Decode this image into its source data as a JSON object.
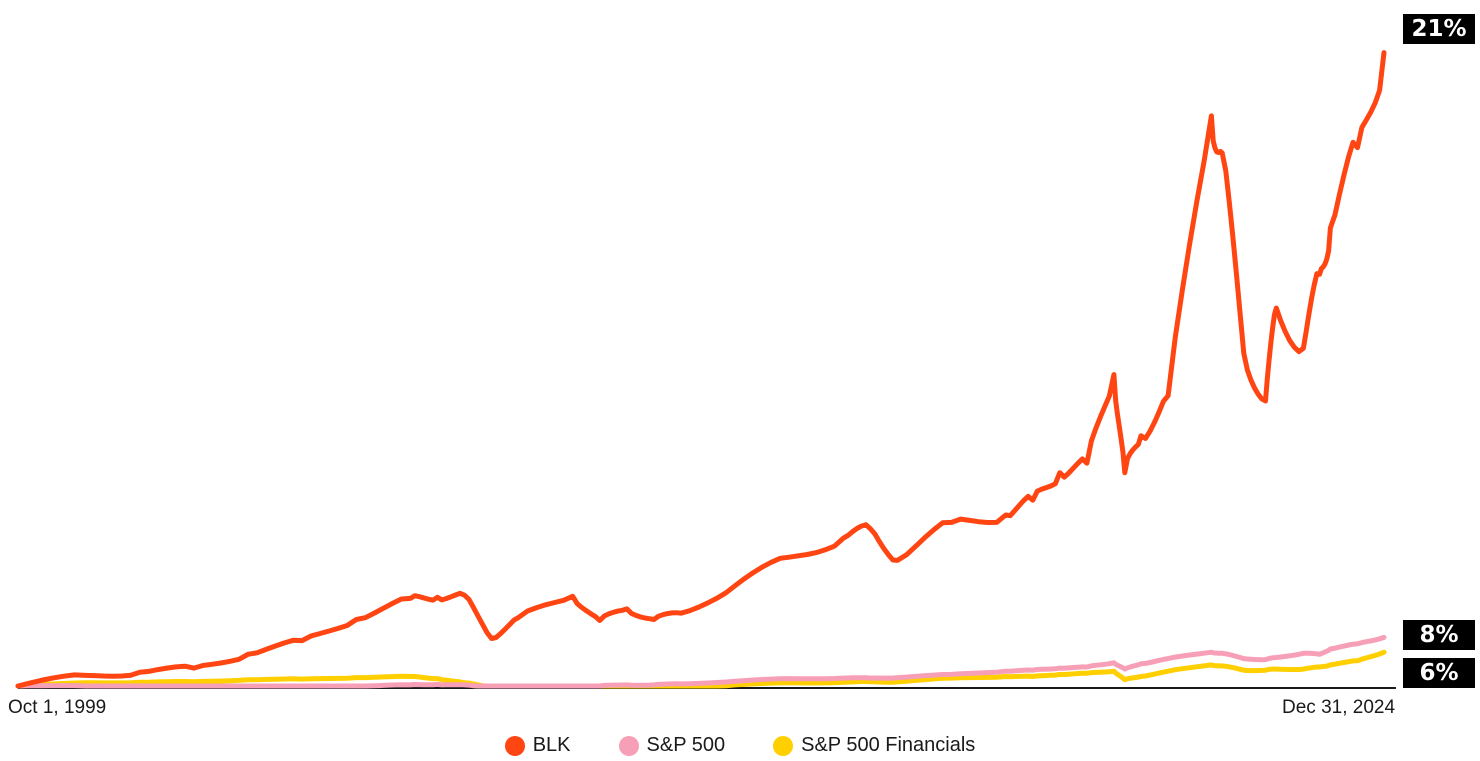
{
  "chart_data": {
    "type": "line",
    "title": "",
    "xlabel": "",
    "ylabel": "",
    "x_range": [
      "Oct 1, 1999",
      "Dec 31, 2024"
    ],
    "x_tick_labels": [
      "Oct 1, 1999",
      "Dec 31, 2024"
    ],
    "grid": false,
    "legend_position": "bottom-center",
    "note": "Cumulative total return lines indexed to start; end labels show annualized returns. Values are approximate relative growth multiples (start = 1).",
    "x": [
      1999.75,
      2001,
      2002,
      2003,
      2004,
      2005,
      2006,
      2007,
      2007.5,
      2008,
      2008.5,
      2009,
      2010,
      2010.5,
      2011,
      2011.5,
      2012,
      2013,
      2014,
      2015,
      2015.5,
      2016,
      2017,
      2018,
      2018.5,
      2019,
      2019.5,
      2020,
      2020.2,
      2020.5,
      2021,
      2021.8,
      2022,
      2022.4,
      2022.8,
      2023,
      2023.5,
      2023.8,
      2024,
      2024.5,
      2024.99
    ],
    "series": [
      {
        "name": "BLK",
        "color": "#FF4512",
        "end_label": "21%",
        "values": [
          1,
          2,
          2.3,
          2.7,
          4,
          5.3,
          7.3,
          9.3,
          9.4,
          9.6,
          5.5,
          7.5,
          9.5,
          7.2,
          8.3,
          7.3,
          7.9,
          10.5,
          13.2,
          15,
          15.9,
          12.9,
          16.5,
          17.2,
          18.6,
          21.2,
          22.1,
          30.5,
          21.2,
          24.7,
          28.5,
          55,
          51.5,
          32.5,
          28,
          36.8,
          33,
          40,
          44.4,
          52,
          61
        ]
      },
      {
        "name": "S&P 500",
        "color": "#F79FB6",
        "end_label": "8%",
        "values": [
          1,
          1,
          0.85,
          0.7,
          0.85,
          0.9,
          1,
          1.1,
          1.15,
          1.1,
          0.8,
          0.75,
          0.95,
          1,
          1.1,
          1.1,
          1.2,
          1.45,
          1.7,
          1.75,
          1.75,
          1.8,
          2.1,
          2.4,
          2.5,
          2.7,
          2.8,
          3.2,
          2.6,
          3.1,
          3.6,
          4.2,
          4.1,
          3.6,
          3.5,
          3.7,
          4.1,
          4.0,
          4.5,
          5.0,
          5.6
        ]
      },
      {
        "name": "S&P 500 Financials",
        "color": "#FFCF00",
        "end_label": "6%",
        "values": [
          1,
          1.3,
          1.35,
          1.4,
          1.6,
          1.65,
          1.8,
          1.9,
          1.7,
          1.3,
          0.9,
          0.6,
          0.8,
          0.75,
          0.8,
          0.7,
          0.85,
          1.1,
          1.3,
          1.35,
          1.4,
          1.4,
          1.75,
          1.9,
          1.9,
          2.1,
          2.2,
          2.4,
          1.6,
          1.9,
          2.4,
          3,
          2.9,
          2.5,
          2.5,
          2.6,
          2.6,
          2.8,
          3.0,
          3.4,
          4.2
        ]
      }
    ],
    "ylim": [
      0,
      62
    ]
  },
  "labels": {
    "blk_end": "21%",
    "sp500_end": "8%",
    "fin_end": "6%",
    "x_start": "Oct 1, 1999",
    "x_end": "Dec 31, 2024"
  },
  "legend": [
    {
      "label": "BLK",
      "color": "#FF4512"
    },
    {
      "label": "S&P 500",
      "color": "#F79FB6"
    },
    {
      "label": "S&P 500 Financials",
      "color": "#FFCF00"
    }
  ],
  "colors": {
    "baseline": "#1a1a1a",
    "label_bg": "#000000",
    "label_fg": "#ffffff"
  }
}
